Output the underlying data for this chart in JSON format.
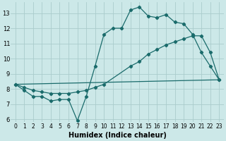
{
  "background_color": "#cce8e8",
  "grid_color": "#aacccc",
  "line_color": "#1a6b6b",
  "xlabel": "Humidex (Indice chaleur)",
  "xlim": [
    -0.5,
    23.5
  ],
  "ylim": [
    5.8,
    13.7
  ],
  "yticks": [
    6,
    7,
    8,
    9,
    10,
    11,
    12,
    13
  ],
  "xticks": [
    0,
    1,
    2,
    3,
    4,
    5,
    6,
    7,
    8,
    9,
    10,
    11,
    12,
    13,
    14,
    15,
    16,
    17,
    18,
    19,
    20,
    21,
    22,
    23
  ],
  "series1_x": [
    0,
    1,
    2,
    3,
    4,
    5,
    6,
    7,
    8,
    9,
    10,
    11,
    12,
    13,
    14,
    15,
    16,
    17,
    18,
    19,
    20,
    21,
    22,
    23
  ],
  "series1_y": [
    8.3,
    7.9,
    7.5,
    7.5,
    7.2,
    7.3,
    7.3,
    5.9,
    7.5,
    9.5,
    11.6,
    12.0,
    12.0,
    13.2,
    13.4,
    12.8,
    12.7,
    12.9,
    12.4,
    12.3,
    11.6,
    10.4,
    9.5,
    8.6
  ],
  "series2_x": [
    0,
    1,
    2,
    3,
    4,
    5,
    6,
    7,
    8,
    9,
    10,
    13,
    14,
    15,
    16,
    17,
    18,
    19,
    20,
    21,
    22,
    23
  ],
  "series2_y": [
    8.3,
    8.1,
    7.9,
    7.8,
    7.7,
    7.7,
    7.7,
    7.8,
    7.9,
    8.1,
    8.3,
    9.5,
    9.8,
    10.3,
    10.6,
    10.9,
    11.1,
    11.3,
    11.5,
    11.5,
    10.4,
    8.6
  ],
  "series3_x": [
    0,
    23
  ],
  "series3_y": [
    8.3,
    8.6
  ]
}
